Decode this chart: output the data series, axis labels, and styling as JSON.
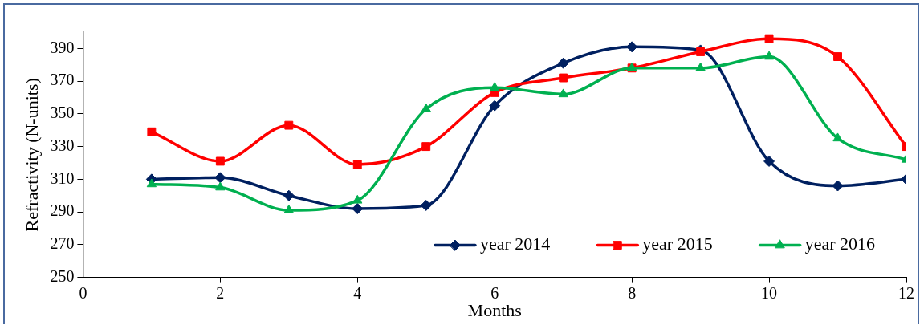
{
  "chart_data": {
    "type": "line",
    "xlabel": "Months",
    "ylabel": "Refractivity (N-units)",
    "x": [
      1,
      2,
      3,
      4,
      5,
      6,
      7,
      8,
      9,
      10,
      11,
      12
    ],
    "series": [
      {
        "name": "year 2014",
        "color": "#002060",
        "marker": "diamond",
        "values": [
          310,
          311,
          300,
          292,
          294,
          355,
          381,
          391,
          389,
          321,
          306,
          310
        ]
      },
      {
        "name": "year 2015",
        "color": "#ff0000",
        "marker": "square",
        "values": [
          339,
          321,
          343,
          319,
          330,
          363,
          372,
          378,
          388,
          396,
          385,
          330
        ]
      },
      {
        "name": "year 2016",
        "color": "#00b050",
        "marker": "triangle",
        "values": [
          307,
          305,
          291,
          297,
          353,
          366,
          362,
          378,
          378,
          385,
          335,
          322
        ]
      }
    ],
    "xlim": [
      0,
      12
    ],
    "xticks": [
      0,
      2,
      4,
      6,
      8,
      10,
      12
    ],
    "ylim": [
      250,
      400
    ],
    "yticks": [
      250,
      270,
      290,
      310,
      330,
      350,
      370,
      390
    ],
    "grid": false,
    "legend": "bottom right",
    "line_style": "solid"
  }
}
